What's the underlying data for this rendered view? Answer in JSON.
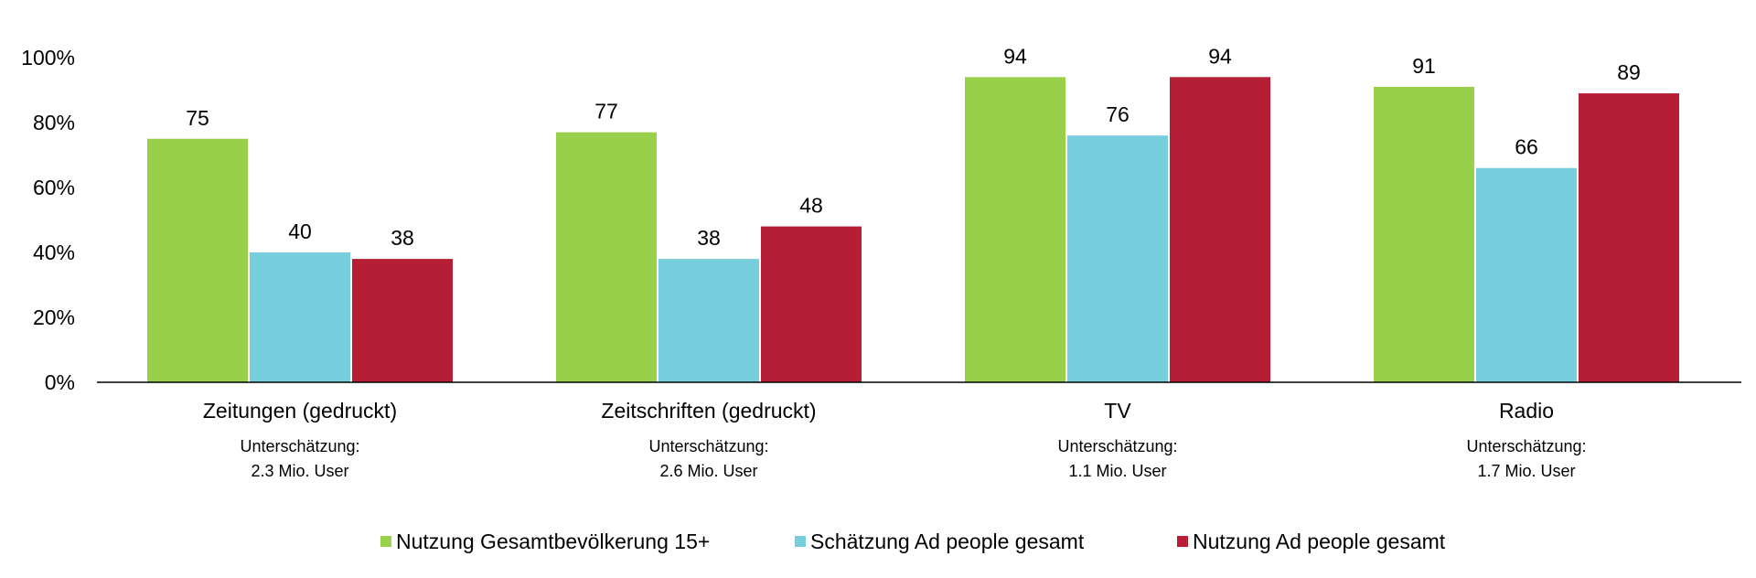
{
  "chart_data": {
    "type": "bar",
    "categories": [
      "Zeitungen (gedruckt)",
      "Zeitschriften (gedruckt)",
      "TV",
      "Radio"
    ],
    "notes": [
      [
        "Unterschätzung:",
        "2.3 Mio. User"
      ],
      [
        "Unterschätzung:",
        "2.6 Mio. User"
      ],
      [
        "Unterschätzung:",
        "1.1 Mio. User"
      ],
      [
        "Unterschätzung:",
        "1.7 Mio. User"
      ]
    ],
    "series": [
      {
        "name": "Nutzung Gesamtbevölkerung 15+",
        "color": "#99d04a",
        "values": [
          75,
          77,
          94,
          91
        ]
      },
      {
        "name": "Schätzung Ad people gesamt",
        "color": "#76cddc",
        "values": [
          40,
          38,
          76,
          66
        ]
      },
      {
        "name": "Nutzung Ad people gesamt",
        "color": "#b51e34",
        "values": [
          38,
          48,
          94,
          89
        ]
      }
    ],
    "y_ticks": [
      "0%",
      "20%",
      "40%",
      "60%",
      "80%",
      "100%"
    ],
    "ylim": [
      0,
      100
    ],
    "grid": false,
    "legend": "bottom"
  }
}
